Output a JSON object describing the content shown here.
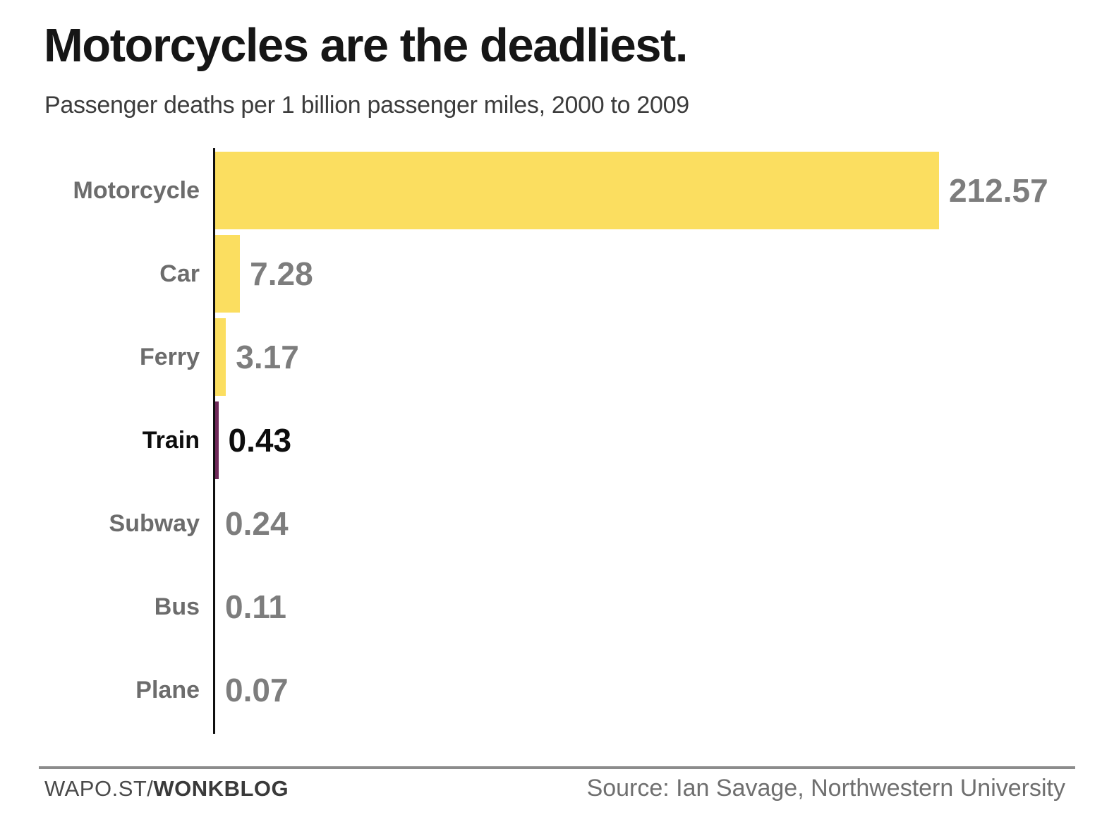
{
  "header": {
    "title": "Motorcycles are the deadliest.",
    "subtitle": "Passenger deaths per 1 billion passenger miles, 2000 to 2009"
  },
  "chart_data": {
    "type": "bar",
    "orientation": "horizontal",
    "title": "Motorcycles are the deadliest.",
    "subtitle": "Passenger deaths per 1 billion passenger miles, 2000 to 2009",
    "categories": [
      "Motorcycle",
      "Car",
      "Ferry",
      "Train",
      "Subway",
      "Bus",
      "Plane"
    ],
    "values": [
      212.57,
      7.28,
      3.17,
      0.43,
      0.24,
      0.11,
      0.07
    ],
    "value_labels": [
      "212.57",
      "7.28",
      "3.17",
      "0.43",
      "0.24",
      "0.11",
      "0.07"
    ],
    "highlight_category": "Train",
    "xlim": [
      0,
      212.57
    ],
    "grid": false,
    "legend": false,
    "colors": {
      "bar": "#FBDE60",
      "highlight_bar": "#6F2959",
      "axis": "#0F0F0F",
      "category_label": "#6C6C6C",
      "value_label": "#7D7D7D",
      "highlight_text": "#0D0D0D"
    }
  },
  "footer": {
    "brand_prefix": "WAPO.ST/",
    "brand_bold": "WONKBLOG",
    "source": "Source: Ian Savage, Northwestern University"
  }
}
